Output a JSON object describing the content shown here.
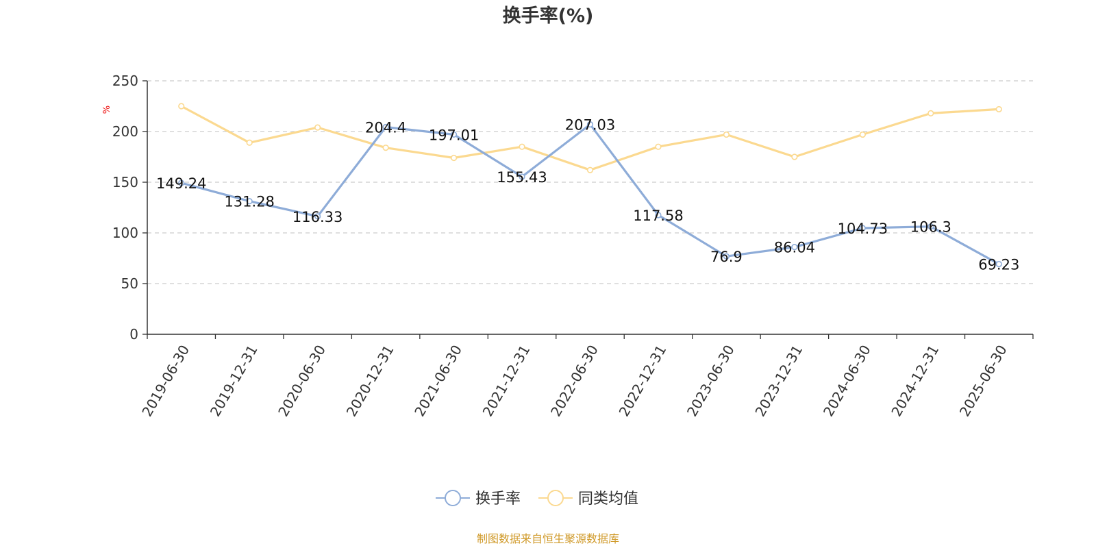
{
  "chart_data": {
    "type": "line",
    "title": "换手率(%)",
    "ylabel": "%",
    "xlabel": "",
    "ylim": [
      0,
      250
    ],
    "yticks": [
      0,
      50,
      100,
      150,
      200,
      250
    ],
    "grid": true,
    "legend_position": "bottom",
    "categories": [
      "2019-06-30",
      "2019-12-31",
      "2020-06-30",
      "2020-12-31",
      "2021-06-30",
      "2021-12-31",
      "2022-06-30",
      "2022-12-31",
      "2023-06-30",
      "2023-12-31",
      "2024-06-30",
      "2024-12-31",
      "2025-06-30"
    ],
    "series": [
      {
        "name": "换手率",
        "color": "#8eacd8",
        "values": [
          149.24,
          131.28,
          116.33,
          204.4,
          197.01,
          155.43,
          207.03,
          117.58,
          76.9,
          86.04,
          104.73,
          106.3,
          69.23
        ],
        "labels": [
          "149.24",
          "131.28",
          "116.33",
          "204.4",
          "197.01",
          "155.43",
          "207.03",
          "117.58",
          "76.9",
          "86.04",
          "104.73",
          "106.3",
          "69.23"
        ]
      },
      {
        "name": "同类均值",
        "color": "#fbd990",
        "values": [
          225,
          189,
          204,
          184,
          174,
          185,
          162,
          185,
          197,
          175,
          197,
          218,
          222
        ]
      }
    ],
    "source": "制图数据来自恒生聚源数据库"
  },
  "colors": {
    "axis": "#333333",
    "grid": "#cccccc",
    "unit_label": "#ee1111",
    "source_text": "#d09a2a"
  }
}
